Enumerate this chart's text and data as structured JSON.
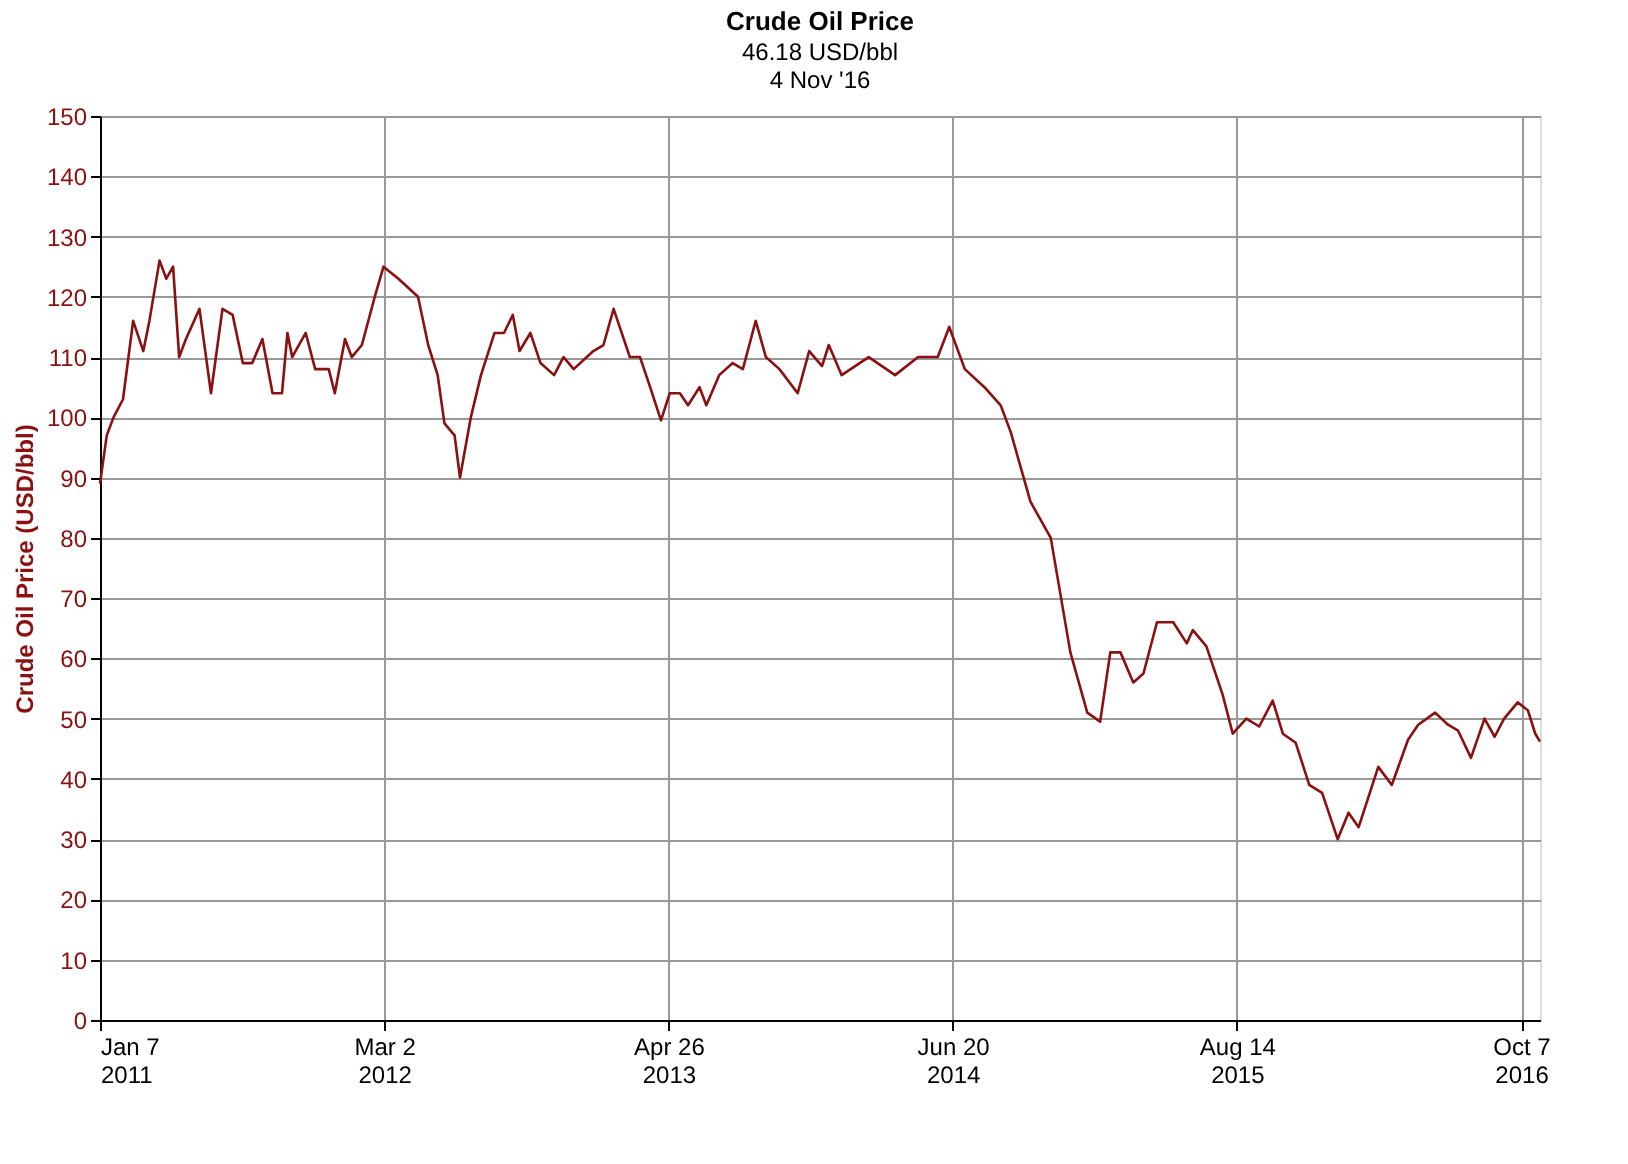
{
  "chart_data": {
    "type": "line",
    "title": "Crude Oil Price",
    "subtitle": "46.18 USD/bbl\n4 Nov '16",
    "ylabel": "Crude Oil Price (USD/bbl)",
    "x": [
      "2011-01-07",
      "2011-01-17",
      "2011-01-27",
      "2011-02-10",
      "2011-02-25",
      "2011-03-12",
      "2011-03-21",
      "2011-04-05",
      "2011-04-15",
      "2011-04-25",
      "2011-05-04",
      "2011-05-14",
      "2011-06-03",
      "2011-06-20",
      "2011-07-07",
      "2011-07-22",
      "2011-08-06",
      "2011-08-20",
      "2011-09-04",
      "2011-09-19",
      "2011-10-03",
      "2011-10-11",
      "2011-10-18",
      "2011-11-07",
      "2011-11-21",
      "2011-12-11",
      "2011-12-20",
      "2012-01-04",
      "2012-01-14",
      "2012-01-29",
      "2012-02-17",
      "2012-03-01",
      "2012-03-23",
      "2012-04-21",
      "2012-05-06",
      "2012-05-20",
      "2012-05-30",
      "2012-06-14",
      "2012-06-22",
      "2012-07-08",
      "2012-07-23",
      "2012-08-12",
      "2012-08-26",
      "2012-09-08",
      "2012-09-18",
      "2012-10-04",
      "2012-10-19",
      "2012-11-08",
      "2012-11-22",
      "2012-12-07",
      "2013-01-05",
      "2013-01-20",
      "2013-02-04",
      "2013-02-28",
      "2013-03-15",
      "2013-03-30",
      "2013-04-15",
      "2013-04-28",
      "2013-05-13",
      "2013-05-25",
      "2013-06-11",
      "2013-06-21",
      "2013-07-10",
      "2013-07-30",
      "2013-08-14",
      "2013-09-02",
      "2013-09-17",
      "2013-10-07",
      "2013-11-03",
      "2013-11-20",
      "2013-12-09",
      "2013-12-19",
      "2014-01-07",
      "2014-02-16",
      "2014-03-27",
      "2014-04-30",
      "2014-05-29",
      "2014-06-15",
      "2014-07-08",
      "2014-08-06",
      "2014-08-30",
      "2014-09-14",
      "2014-10-13",
      "2014-11-12",
      "2014-12-11",
      "2015-01-05",
      "2015-01-24",
      "2015-02-08",
      "2015-02-23",
      "2015-03-14",
      "2015-03-29",
      "2015-04-18",
      "2015-05-12",
      "2015-06-01",
      "2015-06-10",
      "2015-06-30",
      "2015-07-24",
      "2015-08-08",
      "2015-08-28",
      "2015-09-16",
      "2015-10-06",
      "2015-10-21",
      "2015-11-09",
      "2015-11-29",
      "2015-12-18",
      "2016-01-10",
      "2016-01-26",
      "2016-02-10",
      "2016-03-10",
      "2016-03-30",
      "2016-04-23",
      "2016-05-08",
      "2016-06-02",
      "2016-06-21",
      "2016-07-06",
      "2016-07-25",
      "2016-08-14",
      "2016-08-29",
      "2016-09-12",
      "2016-10-02",
      "2016-10-17",
      "2016-10-28",
      "2016-11-04"
    ],
    "series": [
      {
        "color": "#8b1010",
        "values": [
          89,
          97,
          100,
          103,
          116,
          111,
          116,
          126,
          123,
          125,
          110,
          113,
          118,
          104,
          118,
          117,
          109,
          109,
          113,
          104,
          104,
          114,
          110,
          114,
          108,
          108,
          104,
          113,
          110,
          112,
          120,
          125,
          123,
          120,
          112,
          107,
          99,
          97,
          90,
          100,
          107,
          114,
          114,
          117,
          111,
          114,
          109,
          107,
          110,
          108,
          111,
          112,
          118,
          110,
          110,
          105,
          99.5,
          104,
          104,
          102,
          105,
          102,
          107,
          109,
          108,
          116,
          110,
          108,
          104,
          111,
          108.5,
          112,
          107,
          110,
          107,
          110,
          110,
          115,
          108,
          105,
          102,
          97.5,
          86,
          80,
          61,
          51,
          49.5,
          61,
          61,
          56,
          57.5,
          66,
          66,
          62.5,
          64.7,
          62,
          54,
          47.5,
          50,
          48.7,
          53,
          47.5,
          46,
          39,
          37.7,
          30,
          34.4,
          32,
          42,
          39,
          46.5,
          49,
          51,
          49,
          48,
          43.5,
          50,
          47,
          50,
          52.7,
          51.4,
          47.5,
          46.2
        ]
      }
    ],
    "xlim": [
      "2011-01-07",
      "2016-11-04"
    ],
    "xticks": [
      {
        "value": "2011-01-07",
        "label": "Jan 7\n2011"
      },
      {
        "value": "2012-03-02",
        "label": "Mar 2\n2012"
      },
      {
        "value": "2013-04-26",
        "label": "Apr 26\n2013"
      },
      {
        "value": "2014-06-20",
        "label": "Jun 20\n2014"
      },
      {
        "value": "2015-08-14",
        "label": "Aug 14\n2015"
      },
      {
        "value": "2016-10-07",
        "label": "Oct 7\n2016"
      }
    ],
    "ylim": [
      0,
      150
    ],
    "yticks": [
      0,
      10,
      20,
      30,
      40,
      50,
      60,
      70,
      80,
      90,
      100,
      110,
      120,
      130,
      140,
      150
    ],
    "grid": true,
    "legend": false,
    "marker": "none",
    "line_style": "solid"
  }
}
